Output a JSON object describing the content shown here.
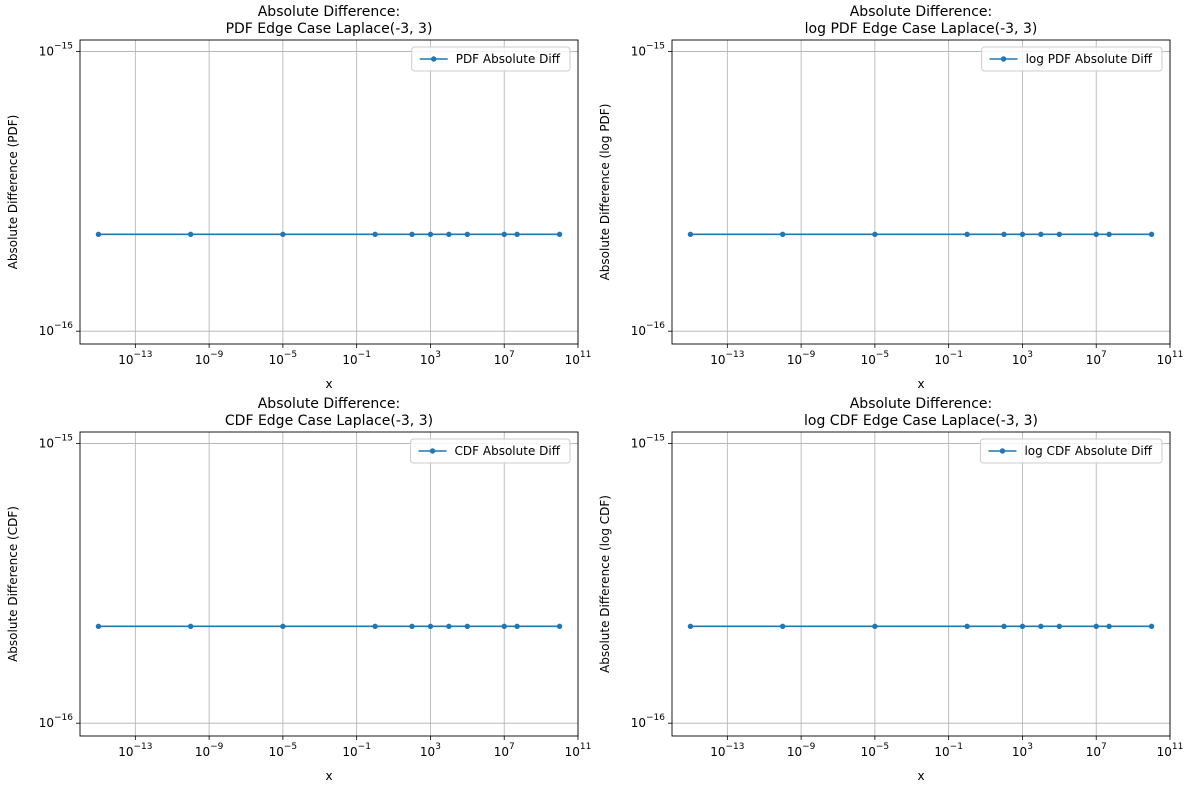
{
  "chart_data": [
    {
      "type": "line",
      "title": "Absolute Difference:\nPDF Edge Case Laplace(-3, 3)",
      "xlabel": "x",
      "ylabel": "Absolute Difference (PDF)",
      "xscale": "log",
      "yscale": "log",
      "xlim": [
        1e-16,
        100000000000.0
      ],
      "ylim": [
        9e-17,
        1.1e-15
      ],
      "x_ticks": [
        1e-13,
        1e-09,
        1e-05,
        0.1,
        1000,
        10000000.0,
        100000000000.0
      ],
      "y_ticks": [
        1e-16,
        1e-15
      ],
      "grid": true,
      "legend_position": "top-right",
      "series": [
        {
          "name": "PDF Absolute Diff",
          "color": "#1f77b4",
          "x": [
            1e-15,
            1e-10,
            1e-05,
            1,
            100,
            1000,
            10000,
            100000,
            10000000,
            50000000,
            10000000000
          ],
          "y": [
            2.22e-16,
            2.22e-16,
            2.22e-16,
            2.22e-16,
            2.22e-16,
            2.22e-16,
            2.22e-16,
            2.22e-16,
            2.22e-16,
            2.22e-16,
            2.22e-16
          ]
        }
      ]
    },
    {
      "type": "line",
      "title": "Absolute Difference:\nlog PDF Edge Case Laplace(-3, 3)",
      "xlabel": "x",
      "ylabel": "Absolute Difference (log PDF)",
      "xscale": "log",
      "yscale": "log",
      "xlim": [
        1e-16,
        100000000000.0
      ],
      "ylim": [
        9e-17,
        1.1e-15
      ],
      "x_ticks": [
        1e-13,
        1e-09,
        1e-05,
        0.1,
        1000,
        10000000.0,
        100000000000.0
      ],
      "y_ticks": [
        1e-16,
        1e-15
      ],
      "grid": true,
      "legend_position": "top-right",
      "series": [
        {
          "name": "log PDF Absolute Diff",
          "color": "#1f77b4",
          "x": [
            1e-15,
            1e-10,
            1e-05,
            1,
            100,
            1000,
            10000,
            100000,
            10000000,
            50000000,
            10000000000
          ],
          "y": [
            2.22e-16,
            2.22e-16,
            2.22e-16,
            2.22e-16,
            2.22e-16,
            2.22e-16,
            2.22e-16,
            2.22e-16,
            2.22e-16,
            2.22e-16,
            2.22e-16
          ]
        }
      ]
    },
    {
      "type": "line",
      "title": "Absolute Difference:\nCDF Edge Case Laplace(-3, 3)",
      "xlabel": "x",
      "ylabel": "Absolute Difference (CDF)",
      "xscale": "log",
      "yscale": "log",
      "xlim": [
        1e-16,
        100000000000.0
      ],
      "ylim": [
        9e-17,
        1.1e-15
      ],
      "x_ticks": [
        1e-13,
        1e-09,
        1e-05,
        0.1,
        1000,
        10000000.0,
        100000000000.0
      ],
      "y_ticks": [
        1e-16,
        1e-15
      ],
      "grid": true,
      "legend_position": "top-right",
      "series": [
        {
          "name": "CDF Absolute Diff",
          "color": "#1f77b4",
          "x": [
            1e-15,
            1e-10,
            1e-05,
            1,
            100,
            1000,
            10000,
            100000,
            10000000,
            50000000,
            10000000000
          ],
          "y": [
            2.22e-16,
            2.22e-16,
            2.22e-16,
            2.22e-16,
            2.22e-16,
            2.22e-16,
            2.22e-16,
            2.22e-16,
            2.22e-16,
            2.22e-16,
            2.22e-16
          ]
        }
      ]
    },
    {
      "type": "line",
      "title": "Absolute Difference:\nlog CDF Edge Case Laplace(-3, 3)",
      "xlabel": "x",
      "ylabel": "Absolute Difference (log CDF)",
      "xscale": "log",
      "yscale": "log",
      "xlim": [
        1e-16,
        100000000000.0
      ],
      "ylim": [
        9e-17,
        1.1e-15
      ],
      "x_ticks": [
        1e-13,
        1e-09,
        1e-05,
        0.1,
        1000,
        10000000.0,
        100000000000.0
      ],
      "y_ticks": [
        1e-16,
        1e-15
      ],
      "grid": true,
      "legend_position": "top-right",
      "series": [
        {
          "name": "log CDF Absolute Diff",
          "color": "#1f77b4",
          "x": [
            1e-15,
            1e-10,
            1e-05,
            1,
            100,
            1000,
            10000,
            100000,
            10000000,
            50000000,
            10000000000
          ],
          "y": [
            2.22e-16,
            2.22e-16,
            2.22e-16,
            2.22e-16,
            2.22e-16,
            2.22e-16,
            2.22e-16,
            2.22e-16,
            2.22e-16,
            2.22e-16,
            2.22e-16
          ]
        }
      ]
    }
  ]
}
